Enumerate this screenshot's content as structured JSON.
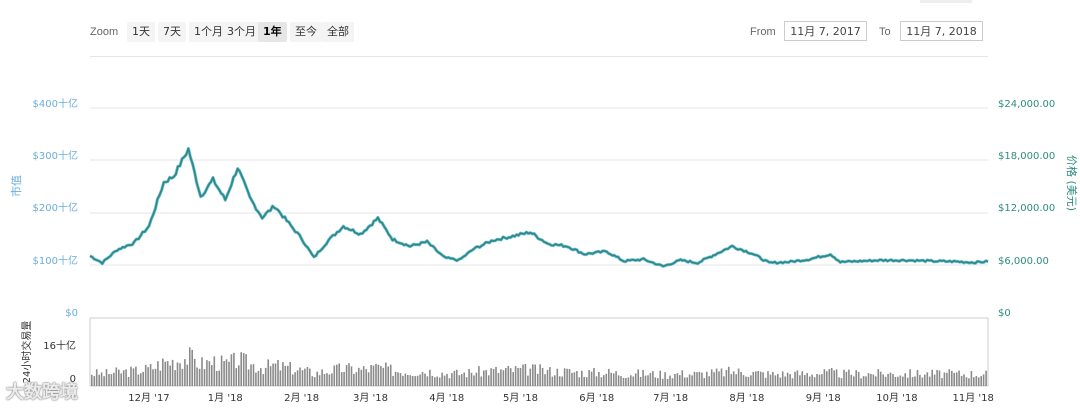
{
  "toolbar": {
    "zoom_label": "Zoom",
    "zoom_options": [
      "1天",
      "7天",
      "1个月",
      "3个月",
      "1年",
      "至今",
      "全部"
    ],
    "active_zoom": "1年",
    "from_label": "From",
    "from_value": "11月 7, 2017",
    "to_label": "To",
    "to_value": "11月 7, 2018"
  },
  "watermark": "大数跨境",
  "chart_data": {
    "type": "line",
    "left_axis_title": "市值",
    "right_axis_title": "价格 (美元)",
    "volume_axis_title": "24小时交易量",
    "left_ticks": [
      "$400十亿",
      "$300十亿",
      "$200十亿",
      "$100十亿",
      "$0"
    ],
    "right_ticks": [
      "$24,000.00",
      "$18,000.00",
      "$12,000.00",
      "$6,000.00",
      "$0"
    ],
    "volume_ticks": [
      "16十亿",
      "0"
    ],
    "x_ticks": [
      "12月 '17",
      "1月 '18",
      "2月 '18",
      "3月 '18",
      "4月 '18",
      "5月 '18",
      "6月 '18",
      "7月 '18",
      "8月 '18",
      "9月 '18",
      "10月 '18",
      "11月 '18"
    ],
    "x_range": [
      "2017-11-07",
      "2018-11-07"
    ],
    "price_range": [
      0,
      24000
    ],
    "volume_range": [
      0,
      16
    ],
    "colors": {
      "price": "#2d8c7e",
      "marketcap": "#7cc3e8",
      "volume": "#8a8a8a",
      "left_axis": "#6aaedb",
      "right_axis": "#2d8c7e"
    },
    "series": [
      {
        "name": "价格 (美元)",
        "points": [
          [
            "2017-11-07",
            7100
          ],
          [
            "2017-11-12",
            6300
          ],
          [
            "2017-11-18",
            7800
          ],
          [
            "2017-11-25",
            8600
          ],
          [
            "2017-12-01",
            10500
          ],
          [
            "2017-12-07",
            15500
          ],
          [
            "2017-12-11",
            16200
          ],
          [
            "2017-12-17",
            19300
          ],
          [
            "2017-12-22",
            13900
          ],
          [
            "2017-12-27",
            15800
          ],
          [
            "2018-01-01",
            13500
          ],
          [
            "2018-01-06",
            17200
          ],
          [
            "2018-01-11",
            13700
          ],
          [
            "2018-01-16",
            11500
          ],
          [
            "2018-01-21",
            12800
          ],
          [
            "2018-01-26",
            11100
          ],
          [
            "2018-02-01",
            9100
          ],
          [
            "2018-02-06",
            6900
          ],
          [
            "2018-02-12",
            8900
          ],
          [
            "2018-02-18",
            10500
          ],
          [
            "2018-02-25",
            9600
          ],
          [
            "2018-03-04",
            11400
          ],
          [
            "2018-03-10",
            9000
          ],
          [
            "2018-03-17",
            8200
          ],
          [
            "2018-03-24",
            8700
          ],
          [
            "2018-03-31",
            6900
          ],
          [
            "2018-04-06",
            6600
          ],
          [
            "2018-04-12",
            7900
          ],
          [
            "2018-04-20",
            8900
          ],
          [
            "2018-04-27",
            9300
          ],
          [
            "2018-05-05",
            9800
          ],
          [
            "2018-05-12",
            8500
          ],
          [
            "2018-05-20",
            8200
          ],
          [
            "2018-05-27",
            7300
          ],
          [
            "2018-06-05",
            7600
          ],
          [
            "2018-06-12",
            6500
          ],
          [
            "2018-06-20",
            6700
          ],
          [
            "2018-06-28",
            5900
          ],
          [
            "2018-07-05",
            6600
          ],
          [
            "2018-07-12",
            6300
          ],
          [
            "2018-07-20",
            7400
          ],
          [
            "2018-07-26",
            8200
          ],
          [
            "2018-08-03",
            7400
          ],
          [
            "2018-08-10",
            6300
          ],
          [
            "2018-08-18",
            6400
          ],
          [
            "2018-08-26",
            6700
          ],
          [
            "2018-09-04",
            7300
          ],
          [
            "2018-09-08",
            6400
          ],
          [
            "2018-09-16",
            6500
          ],
          [
            "2018-09-24",
            6600
          ],
          [
            "2018-10-05",
            6600
          ],
          [
            "2018-10-15",
            6500
          ],
          [
            "2018-10-25",
            6450
          ],
          [
            "2018-11-01",
            6350
          ],
          [
            "2018-11-07",
            6450
          ]
        ]
      }
    ]
  }
}
